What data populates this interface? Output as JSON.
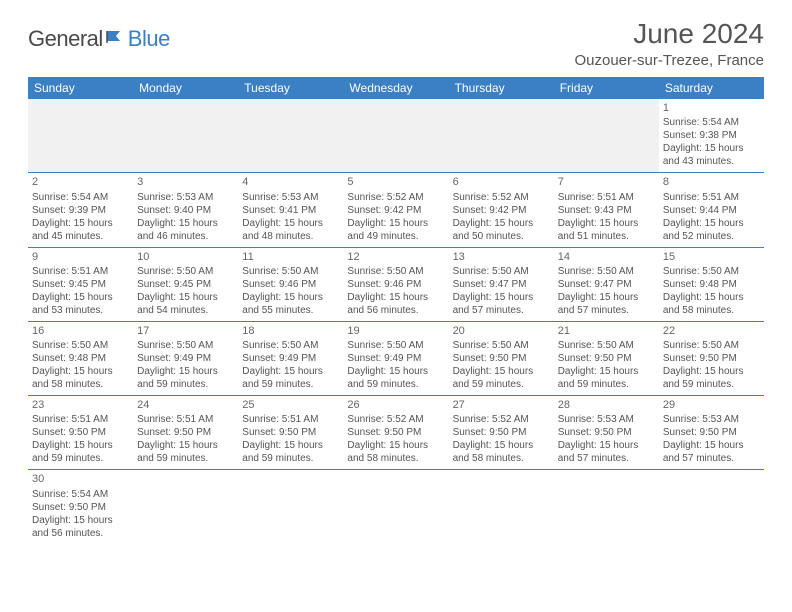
{
  "brand": {
    "part1": "General",
    "part2": "Blue"
  },
  "title": "June 2024",
  "location": "Ouzouer-sur-Trezee, France",
  "colors": {
    "header_bg": "#3b7fc4",
    "text": "#555555",
    "brand_blue": "#3b7fc4"
  },
  "day_headers": [
    "Sunday",
    "Monday",
    "Tuesday",
    "Wednesday",
    "Thursday",
    "Friday",
    "Saturday"
  ],
  "weeks": [
    [
      null,
      null,
      null,
      null,
      null,
      null,
      {
        "n": "1",
        "sr": "Sunrise: 5:54 AM",
        "ss": "Sunset: 9:38 PM",
        "d1": "Daylight: 15 hours",
        "d2": "and 43 minutes."
      }
    ],
    [
      {
        "n": "2",
        "sr": "Sunrise: 5:54 AM",
        "ss": "Sunset: 9:39 PM",
        "d1": "Daylight: 15 hours",
        "d2": "and 45 minutes."
      },
      {
        "n": "3",
        "sr": "Sunrise: 5:53 AM",
        "ss": "Sunset: 9:40 PM",
        "d1": "Daylight: 15 hours",
        "d2": "and 46 minutes."
      },
      {
        "n": "4",
        "sr": "Sunrise: 5:53 AM",
        "ss": "Sunset: 9:41 PM",
        "d1": "Daylight: 15 hours",
        "d2": "and 48 minutes."
      },
      {
        "n": "5",
        "sr": "Sunrise: 5:52 AM",
        "ss": "Sunset: 9:42 PM",
        "d1": "Daylight: 15 hours",
        "d2": "and 49 minutes."
      },
      {
        "n": "6",
        "sr": "Sunrise: 5:52 AM",
        "ss": "Sunset: 9:42 PM",
        "d1": "Daylight: 15 hours",
        "d2": "and 50 minutes."
      },
      {
        "n": "7",
        "sr": "Sunrise: 5:51 AM",
        "ss": "Sunset: 9:43 PM",
        "d1": "Daylight: 15 hours",
        "d2": "and 51 minutes."
      },
      {
        "n": "8",
        "sr": "Sunrise: 5:51 AM",
        "ss": "Sunset: 9:44 PM",
        "d1": "Daylight: 15 hours",
        "d2": "and 52 minutes."
      }
    ],
    [
      {
        "n": "9",
        "sr": "Sunrise: 5:51 AM",
        "ss": "Sunset: 9:45 PM",
        "d1": "Daylight: 15 hours",
        "d2": "and 53 minutes."
      },
      {
        "n": "10",
        "sr": "Sunrise: 5:50 AM",
        "ss": "Sunset: 9:45 PM",
        "d1": "Daylight: 15 hours",
        "d2": "and 54 minutes."
      },
      {
        "n": "11",
        "sr": "Sunrise: 5:50 AM",
        "ss": "Sunset: 9:46 PM",
        "d1": "Daylight: 15 hours",
        "d2": "and 55 minutes."
      },
      {
        "n": "12",
        "sr": "Sunrise: 5:50 AM",
        "ss": "Sunset: 9:46 PM",
        "d1": "Daylight: 15 hours",
        "d2": "and 56 minutes."
      },
      {
        "n": "13",
        "sr": "Sunrise: 5:50 AM",
        "ss": "Sunset: 9:47 PM",
        "d1": "Daylight: 15 hours",
        "d2": "and 57 minutes."
      },
      {
        "n": "14",
        "sr": "Sunrise: 5:50 AM",
        "ss": "Sunset: 9:47 PM",
        "d1": "Daylight: 15 hours",
        "d2": "and 57 minutes."
      },
      {
        "n": "15",
        "sr": "Sunrise: 5:50 AM",
        "ss": "Sunset: 9:48 PM",
        "d1": "Daylight: 15 hours",
        "d2": "and 58 minutes."
      }
    ],
    [
      {
        "n": "16",
        "sr": "Sunrise: 5:50 AM",
        "ss": "Sunset: 9:48 PM",
        "d1": "Daylight: 15 hours",
        "d2": "and 58 minutes."
      },
      {
        "n": "17",
        "sr": "Sunrise: 5:50 AM",
        "ss": "Sunset: 9:49 PM",
        "d1": "Daylight: 15 hours",
        "d2": "and 59 minutes."
      },
      {
        "n": "18",
        "sr": "Sunrise: 5:50 AM",
        "ss": "Sunset: 9:49 PM",
        "d1": "Daylight: 15 hours",
        "d2": "and 59 minutes."
      },
      {
        "n": "19",
        "sr": "Sunrise: 5:50 AM",
        "ss": "Sunset: 9:49 PM",
        "d1": "Daylight: 15 hours",
        "d2": "and 59 minutes."
      },
      {
        "n": "20",
        "sr": "Sunrise: 5:50 AM",
        "ss": "Sunset: 9:50 PM",
        "d1": "Daylight: 15 hours",
        "d2": "and 59 minutes."
      },
      {
        "n": "21",
        "sr": "Sunrise: 5:50 AM",
        "ss": "Sunset: 9:50 PM",
        "d1": "Daylight: 15 hours",
        "d2": "and 59 minutes."
      },
      {
        "n": "22",
        "sr": "Sunrise: 5:50 AM",
        "ss": "Sunset: 9:50 PM",
        "d1": "Daylight: 15 hours",
        "d2": "and 59 minutes."
      }
    ],
    [
      {
        "n": "23",
        "sr": "Sunrise: 5:51 AM",
        "ss": "Sunset: 9:50 PM",
        "d1": "Daylight: 15 hours",
        "d2": "and 59 minutes."
      },
      {
        "n": "24",
        "sr": "Sunrise: 5:51 AM",
        "ss": "Sunset: 9:50 PM",
        "d1": "Daylight: 15 hours",
        "d2": "and 59 minutes."
      },
      {
        "n": "25",
        "sr": "Sunrise: 5:51 AM",
        "ss": "Sunset: 9:50 PM",
        "d1": "Daylight: 15 hours",
        "d2": "and 59 minutes."
      },
      {
        "n": "26",
        "sr": "Sunrise: 5:52 AM",
        "ss": "Sunset: 9:50 PM",
        "d1": "Daylight: 15 hours",
        "d2": "and 58 minutes."
      },
      {
        "n": "27",
        "sr": "Sunrise: 5:52 AM",
        "ss": "Sunset: 9:50 PM",
        "d1": "Daylight: 15 hours",
        "d2": "and 58 minutes."
      },
      {
        "n": "28",
        "sr": "Sunrise: 5:53 AM",
        "ss": "Sunset: 9:50 PM",
        "d1": "Daylight: 15 hours",
        "d2": "and 57 minutes."
      },
      {
        "n": "29",
        "sr": "Sunrise: 5:53 AM",
        "ss": "Sunset: 9:50 PM",
        "d1": "Daylight: 15 hours",
        "d2": "and 57 minutes."
      }
    ],
    [
      {
        "n": "30",
        "sr": "Sunrise: 5:54 AM",
        "ss": "Sunset: 9:50 PM",
        "d1": "Daylight: 15 hours",
        "d2": "and 56 minutes."
      },
      null,
      null,
      null,
      null,
      null,
      null
    ]
  ]
}
